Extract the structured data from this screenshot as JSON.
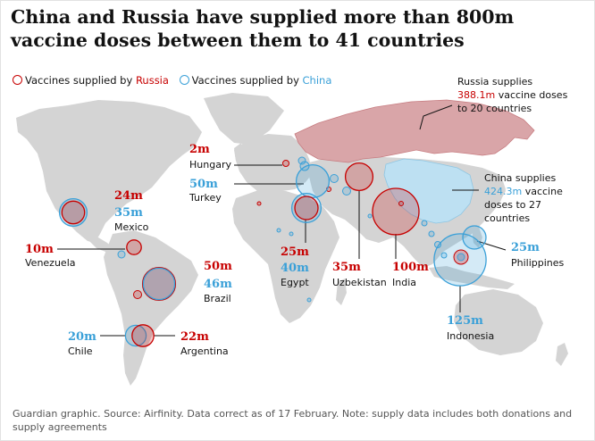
{
  "headline": "China and Russia have supplied more than 800m vaccine doses between them to 41 countries",
  "legend": {
    "russia_prefix": "Vaccines supplied by ",
    "russia_name": "Russia",
    "china_prefix": "Vaccines supplied by ",
    "china_name": "China"
  },
  "colors": {
    "russia": "#c70000",
    "china": "#3aa0d8",
    "russia_fill": "#d9a5a8",
    "china_fill": "#bde0f2",
    "land": "#d4d4d4",
    "russia_bubble_fill": "rgba(199,0,0,0.22)",
    "china_bubble_fill": "rgba(58,160,216,0.22)"
  },
  "annotations": {
    "russia_total": {
      "line1": "Russia supplies",
      "amount": "388.1m",
      "rest": " vaccine doses",
      "line3": "to 20 countries"
    },
    "china_total": {
      "line1": "China supplies",
      "amount": "424.3m",
      "rest": " vaccine",
      "line3": "doses to 27",
      "line4": "countries"
    }
  },
  "countries": [
    {
      "name": "Hungary",
      "russia": "2m",
      "china": ""
    },
    {
      "name": "Turkey",
      "russia": "",
      "china": "50m"
    },
    {
      "name": "Mexico",
      "russia": "24m",
      "china": "35m"
    },
    {
      "name": "Venezuela",
      "russia": "10m",
      "china": ""
    },
    {
      "name": "Brazil",
      "russia": "50m",
      "china": "46m"
    },
    {
      "name": "Chile",
      "russia": "",
      "china": "20m"
    },
    {
      "name": "Argentina",
      "russia": "22m",
      "china": ""
    },
    {
      "name": "Egypt",
      "russia": "25m",
      "china": "40m"
    },
    {
      "name": "Uzbekistan",
      "russia": "35m",
      "china": ""
    },
    {
      "name": "India",
      "russia": "100m",
      "china": ""
    },
    {
      "name": "Indonesia",
      "russia": "",
      "china": "125m"
    },
    {
      "name": "Philippines",
      "russia": "",
      "china": "25m"
    }
  ],
  "footer": "Guardian graphic. Source: Airfinity. Data correct as of 17 February. Note: supply data includes both donations and supply agreements"
}
